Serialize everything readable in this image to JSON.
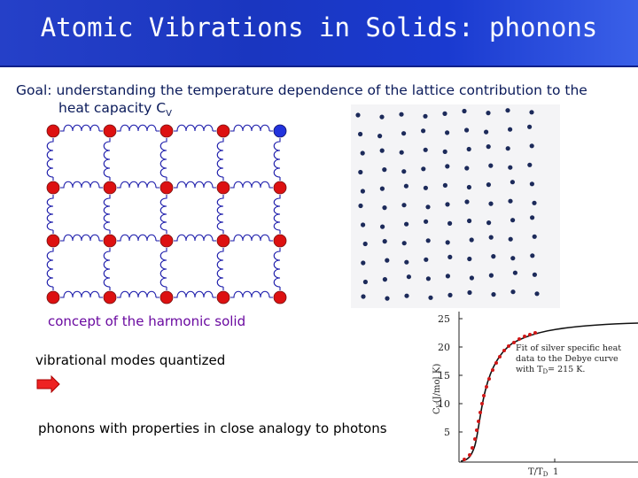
{
  "slide": {
    "title": "Atomic Vibrations in Solids: phonons",
    "goal_line1": "Goal: understanding the temperature dependence of the lattice contribution to the",
    "goal_line2_prefix": "heat capacity C",
    "goal_line2_sub": "V",
    "harmonic_caption": "concept of the harmonic solid",
    "modes_caption": "vibrational modes quantized",
    "photon_caption": "phonons with properties in close analogy to photons"
  },
  "colors": {
    "title_bg": "#1a36c0",
    "atom_red": "#dd1111",
    "atom_blue": "#2233dd",
    "spring": "#1a1aaa",
    "caption_purple": "#6a0aa0",
    "arrow_red": "#ee2222",
    "curve_red": "#d01818"
  },
  "icons": {
    "arrow": "right-arrow-icon"
  },
  "graph": {
    "ylabel": "C",
    "ylabel_sub": "V",
    "ylabel_units": "(J/mol K)",
    "yticks": [
      "25",
      "20",
      "15",
      "10",
      "5"
    ],
    "xlabel": "T/T",
    "xlabel_sub": "D",
    "xtick": "1",
    "annotation": [
      "Fit of silver specific heat",
      "data to the Debye curve",
      "with T",
      "= 215 K."
    ],
    "annotation_sub": "D"
  }
}
